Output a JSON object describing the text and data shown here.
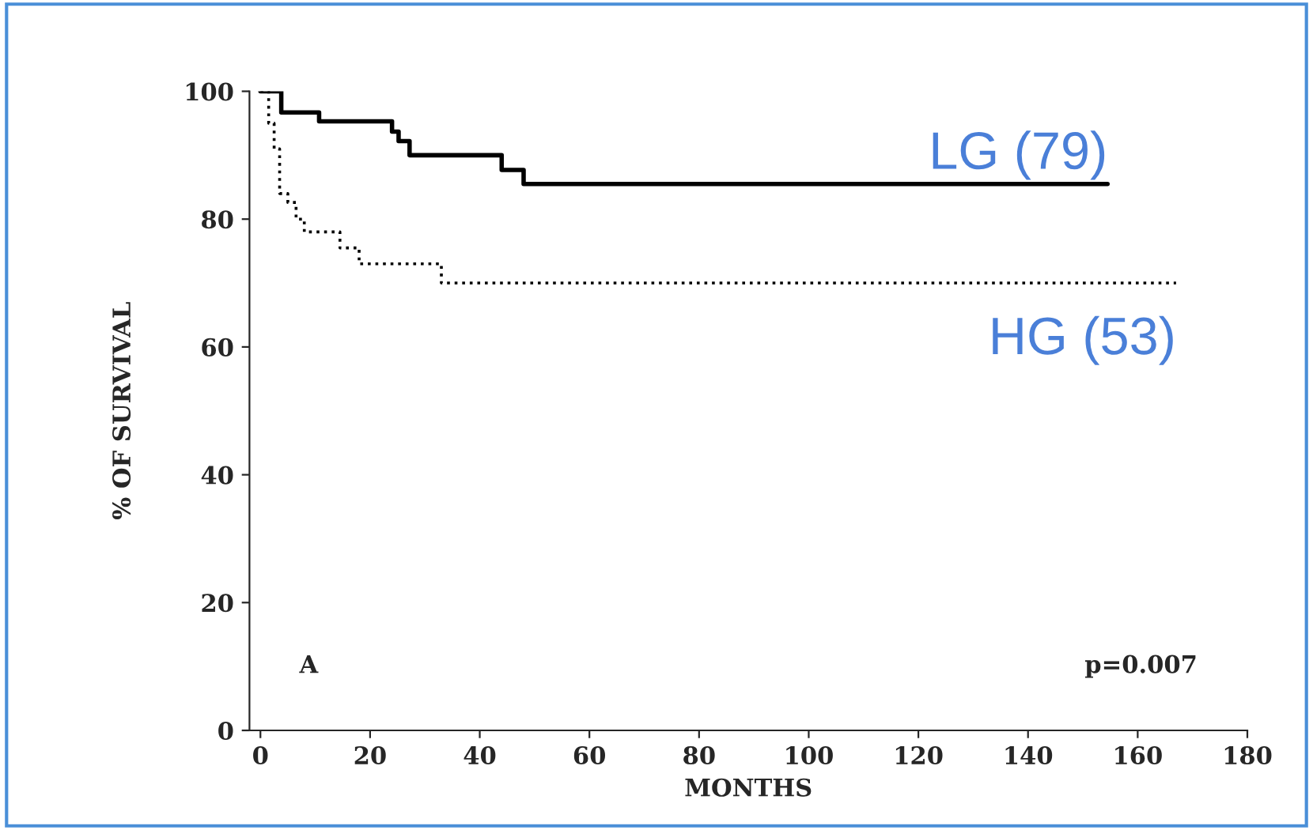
{
  "chart_data": {
    "type": "step",
    "xlabel": "MONTHS",
    "ylabel": "% OF SURVIVAL",
    "xlim": [
      -2,
      180
    ],
    "ylim": [
      0,
      100
    ],
    "xticks": [
      0,
      20,
      40,
      60,
      80,
      100,
      120,
      140,
      160,
      180
    ],
    "yticks": [
      0,
      20,
      40,
      60,
      80,
      100
    ],
    "grid": false,
    "legend": false,
    "series": [
      {
        "name": "LG (79)",
        "color": "#000000",
        "line_style": "solid",
        "x": [
          0,
          3.8,
          10.7,
          24,
          25.2,
          27.2,
          44,
          48,
          154.5
        ],
        "values": [
          100,
          96.7,
          95.3,
          93.7,
          92.2,
          90,
          87.7,
          85.5,
          85.5
        ]
      },
      {
        "name": "HG (53)",
        "color": "#000000",
        "line_style": "dotted",
        "x": [
          0,
          1.5,
          2.5,
          3.5,
          5,
          6.5,
          8,
          14.5,
          18,
          33,
          167
        ],
        "values": [
          100,
          95,
          91,
          84,
          82.6,
          80,
          78,
          75.5,
          73,
          70,
          70
        ]
      }
    ],
    "annotations": [
      "A",
      "p=0.007"
    ]
  }
}
